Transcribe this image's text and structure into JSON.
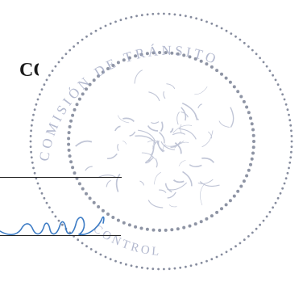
{
  "document": {
    "heading_text": "CO",
    "seal": {
      "inscription_top": "COMISIÓN DE TRÁNSITO",
      "inscription_bottom": "CONTROL",
      "ink_color": "#8d96b5",
      "dot_color": "#5e667e"
    },
    "signature": {
      "ink_color": "#3d7cc5"
    },
    "rule_color": "#222222"
  }
}
